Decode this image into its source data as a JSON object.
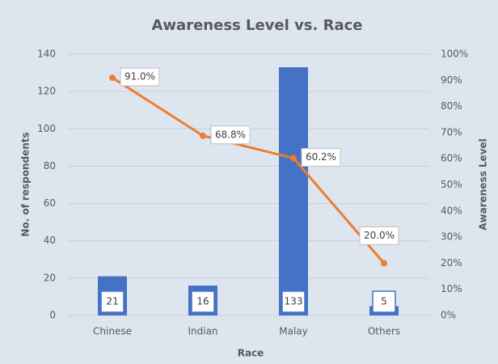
{
  "chart_data": {
    "type": "combo",
    "title": "Awareness Level vs. Race",
    "x_label": "Race",
    "y_label": "No. of respondents",
    "y2_label": "Awareness Level",
    "categories": [
      "Chinese",
      "Indian",
      "Malay",
      "Others"
    ],
    "series": [
      {
        "type": "bar",
        "color": "#4472c4",
        "values": [
          21,
          16,
          133,
          5
        ]
      },
      {
        "type": "line",
        "color": "#ed7d31",
        "axis": "y2",
        "values": [
          91.0,
          68.8,
          60.2,
          20.0
        ],
        "value_labels": [
          "91.0%",
          "68.8%",
          "60.2%",
          "20.0%"
        ]
      }
    ],
    "ylim": [
      0,
      140
    ],
    "yticks": [
      0,
      20,
      40,
      60,
      80,
      100,
      120,
      140
    ],
    "y2lim": [
      0,
      100
    ],
    "y2ticks": [
      {
        "value": 0,
        "label": "0%"
      },
      {
        "value": 10,
        "label": "10%"
      },
      {
        "value": 20,
        "label": "20%"
      },
      {
        "value": 30,
        "label": "30%"
      },
      {
        "value": 40,
        "label": "40%"
      },
      {
        "value": 50,
        "label": "50%"
      },
      {
        "value": 60,
        "label": "60%"
      },
      {
        "value": 70,
        "label": "70%"
      },
      {
        "value": 80,
        "label": "80%"
      },
      {
        "value": 90,
        "label": "90%"
      },
      {
        "value": 100,
        "label": "100%"
      }
    ],
    "grid": true
  }
}
